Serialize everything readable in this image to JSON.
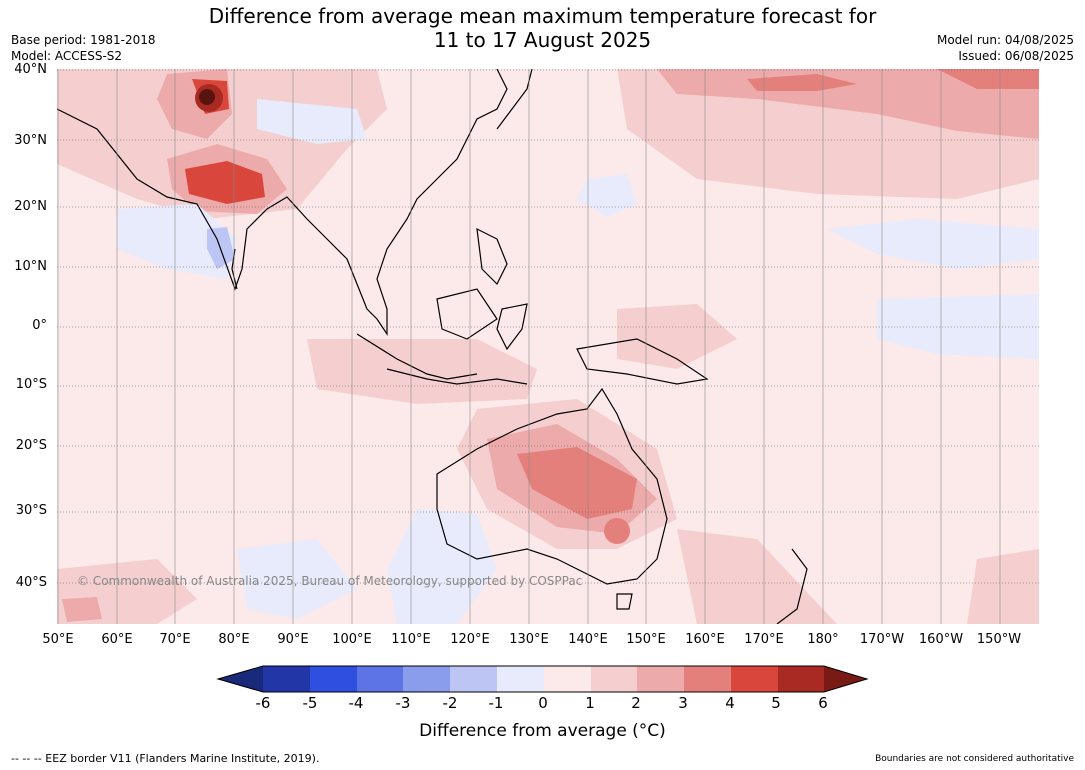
{
  "title_line1": "Difference from average mean maximum temperature forecast for",
  "title_line2": "11 to 17 August 2025",
  "meta_left": {
    "base_period": "Base period: 1981-2018",
    "model": "Model: ACCESS-S2"
  },
  "meta_right": {
    "model_run": "Model run: 04/08/2025",
    "issued": "Issued: 06/08/2025"
  },
  "lat_labels": [
    "40°N",
    "30°N",
    "20°N",
    "10°N",
    "0°",
    "10°S",
    "20°S",
    "30°S",
    "40°S"
  ],
  "lon_labels": [
    "50°E",
    "60°E",
    "70°E",
    "80°E",
    "90°E",
    "100°E",
    "110°E",
    "120°E",
    "130°E",
    "140°E",
    "150°E",
    "160°E",
    "170°E",
    "180°",
    "170°W",
    "160°W",
    "150°W"
  ],
  "copyright": "© Commonwealth of Australia 2025, Bureau of Meteorology, supported by COSPPac",
  "colorbar": {
    "ticks": [
      "-6",
      "-5",
      "-4",
      "-3",
      "-2",
      "-1",
      "0",
      "1",
      "2",
      "3",
      "4",
      "5",
      "6"
    ],
    "colors": [
      "#1a2a7a",
      "#2336a8",
      "#2f4fe0",
      "#5c74e6",
      "#8a9cec",
      "#bcc5f3",
      "#e8ebfb",
      "#fceaea",
      "#f5cfcf",
      "#edaaaa",
      "#e4807c",
      "#d9473c",
      "#a82a22",
      "#7a1a14"
    ],
    "title": "Difference from average (°C)"
  },
  "footer_left": "--  --  -- EEZ border V11 (Flanders Marine Institute, 2019).",
  "footer_right": "Boundaries are not considered authoritative"
}
